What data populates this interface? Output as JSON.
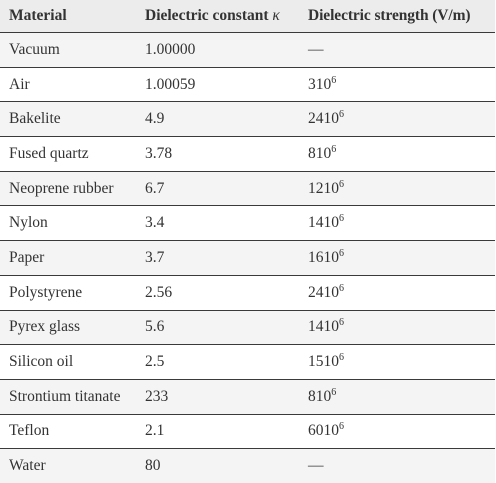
{
  "table": {
    "headers": {
      "material": "Material",
      "constant": "Dielectric constant",
      "constant_symbol": "κ",
      "strength": "Dielectric strength (V/m)"
    },
    "rows": [
      {
        "material": "Vacuum",
        "constant": "1.00000",
        "strength_base": "—",
        "strength_exp": ""
      },
      {
        "material": "Air",
        "constant": "1.00059",
        "strength_base": "310",
        "strength_exp": "6"
      },
      {
        "material": "Bakelite",
        "constant": "4.9",
        "strength_base": "2410",
        "strength_exp": "6"
      },
      {
        "material": "Fused quartz",
        "constant": "3.78",
        "strength_base": "810",
        "strength_exp": "6"
      },
      {
        "material": "Neoprene rubber",
        "constant": "6.7",
        "strength_base": "1210",
        "strength_exp": "6"
      },
      {
        "material": "Nylon",
        "constant": "3.4",
        "strength_base": "1410",
        "strength_exp": "6"
      },
      {
        "material": "Paper",
        "constant": "3.7",
        "strength_base": "1610",
        "strength_exp": "6"
      },
      {
        "material": "Polystyrene",
        "constant": "2.56",
        "strength_base": "2410",
        "strength_exp": "6"
      },
      {
        "material": "Pyrex glass",
        "constant": "5.6",
        "strength_base": "1410",
        "strength_exp": "6"
      },
      {
        "material": "Silicon oil",
        "constant": "2.5",
        "strength_base": "1510",
        "strength_exp": "6"
      },
      {
        "material": "Strontium titanate",
        "constant": "233",
        "strength_base": "810",
        "strength_exp": "6"
      },
      {
        "material": "Teflon",
        "constant": "2.1",
        "strength_base": "6010",
        "strength_exp": "6"
      },
      {
        "material": "Water",
        "constant": "80",
        "strength_base": "—",
        "strength_exp": ""
      }
    ]
  }
}
